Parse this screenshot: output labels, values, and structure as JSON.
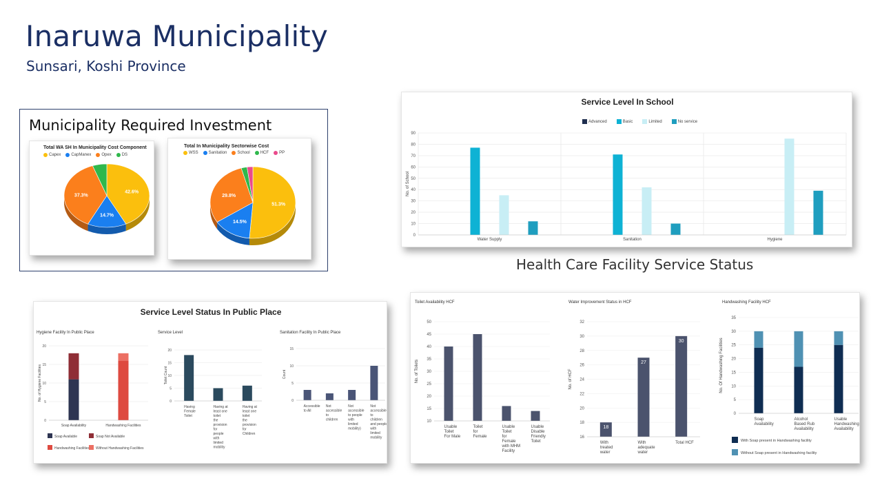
{
  "page": {
    "title": "Inaruwa Municipality",
    "subtitle": "Sunsari, Koshi Province",
    "investment_heading": "Municipality Required Investment",
    "hcf_heading": "Health Care Facility Service Status",
    "public_heading": "Service Level Status In Public Place"
  },
  "chart_data": [
    {
      "id": "wash-cost",
      "type": "pie",
      "title": "Total WA SH In Municipality Cost Component",
      "labels": [
        "Capex",
        "CapManex",
        "Opex",
        "DS"
      ],
      "values": [
        42.6,
        14.7,
        37.3,
        5.4
      ],
      "value_labels": [
        "42.6%",
        "14.7%",
        "37.3%",
        ""
      ],
      "colors": [
        "#fbbf0d",
        "#1a7ff0",
        "#fb7f1c",
        "#2fb84c"
      ]
    },
    {
      "id": "sector-cost",
      "type": "pie",
      "title": "Total In Municipality Sectorwise Cost",
      "labels": [
        "WSS",
        "Sanitation",
        "School",
        "HCF",
        "PP"
      ],
      "values": [
        51.3,
        14.5,
        29.8,
        2.2,
        2.2
      ],
      "value_labels": [
        "51.3%",
        "14.5%",
        "29.8%",
        "",
        ""
      ],
      "colors": [
        "#fbbf0d",
        "#1a7ff0",
        "#fb7f1c",
        "#2fb84c",
        "#ea4a8c"
      ]
    },
    {
      "id": "school",
      "type": "bar",
      "title": "Service Level In School",
      "categories": [
        "Water Supply",
        "Sanitation",
        "Hygiene"
      ],
      "ylabel": "No. of School",
      "ylim": [
        0,
        90
      ],
      "yticks": [
        0,
        10,
        20,
        30,
        40,
        50,
        60,
        70,
        80,
        90
      ],
      "series": [
        {
          "name": "Advanced",
          "color": "#1f2e4f",
          "values": [
            0,
            0,
            0
          ]
        },
        {
          "name": "Basic",
          "color": "#0eb2d4",
          "values": [
            77,
            71,
            0
          ]
        },
        {
          "name": "Limited",
          "color": "#c8eef5",
          "values": [
            35,
            42,
            85
          ]
        },
        {
          "name": "No service",
          "color": "#1f9ebf",
          "values": [
            12,
            10,
            39
          ]
        }
      ]
    },
    {
      "id": "hygiene-public",
      "type": "bar",
      "title": "Hygiene Facility In Public Place",
      "categories": [
        "Soap Availability",
        "Handwashing Facilities"
      ],
      "ylabel": "No. of Hygiene Facilities",
      "ylim": [
        0,
        20
      ],
      "yticks": [
        0,
        5,
        10,
        15,
        20
      ],
      "series": [
        {
          "name": "Soap Available",
          "color": "#2e3552",
          "values": [
            11,
            0
          ]
        },
        {
          "name": "Soap Not Available",
          "color": "#8f2e36",
          "values": [
            7,
            0
          ]
        },
        {
          "name": "Handwashing Facilities",
          "color": "#de4a40",
          "values": [
            0,
            16
          ]
        },
        {
          "name": "Without Handwashing Facilities",
          "color": "#ec6f63",
          "values": [
            0,
            2
          ]
        }
      ]
    },
    {
      "id": "service-level-public",
      "type": "bar",
      "title": "Service Level",
      "categories": [
        "Having Female Toilet",
        "Having at least one toilet the provision for people with limited mobility",
        "Having at least one toilet the provision for Children"
      ],
      "ylabel": "Toilet Count",
      "ylim": [
        0,
        20
      ],
      "yticks": [
        0,
        5,
        10,
        15,
        20
      ],
      "series": [
        {
          "name": "",
          "color": "#2b4a5e",
          "values": [
            18,
            5,
            6
          ]
        }
      ]
    },
    {
      "id": "sanitation-public",
      "type": "bar",
      "title": "Sanitation Facility In Public Place",
      "categories": [
        "Accessible to All",
        "Not accessible to children",
        "Not accessible to people with limited mobility)",
        "Not accessible to children and people with limited mobility"
      ],
      "ylabel": "Count",
      "ylim": [
        0,
        15
      ],
      "yticks": [
        0,
        5,
        10,
        15
      ],
      "series": [
        {
          "name": "",
          "color": "#4a5577",
          "values": [
            3,
            2,
            3,
            10
          ]
        }
      ]
    },
    {
      "id": "toilet-hcf",
      "type": "bar",
      "title": "Toilet Availability HCF",
      "categories": [
        "Usable Toilet For Male",
        "Toilet for Female",
        "Usable Toilet for Female with MHM Facility",
        "Usable Disable Friendly Toilet"
      ],
      "ylabel": "No. of Toilets",
      "ylim": [
        10,
        50
      ],
      "yticks": [
        10,
        15,
        20,
        25,
        30,
        35,
        40,
        45,
        50
      ],
      "series": [
        {
          "name": "",
          "color": "#4b536d",
          "values": [
            40,
            45,
            16,
            14
          ]
        }
      ]
    },
    {
      "id": "water-hcf",
      "type": "bar",
      "title": "Water Improvement Status in HCF",
      "categories": [
        "With treated water",
        "With adequate water",
        "Total HCF"
      ],
      "ylabel": "No. of HCF",
      "ylim": [
        16,
        32
      ],
      "yticks": [
        16,
        18,
        20,
        22,
        24,
        26,
        28,
        30,
        32
      ],
      "value_labels": [
        "18",
        "27",
        "30"
      ],
      "series": [
        {
          "name": "",
          "color": "#4b536d",
          "values": [
            18,
            27,
            30
          ]
        }
      ]
    },
    {
      "id": "handwashing-hcf",
      "type": "bar",
      "title": "Handwashing Facility HCF",
      "categories": [
        "Soap Availability",
        "Alcohol Based Rub Availability",
        "Usable Handwashing Availability"
      ],
      "ylabel": "No. Of Handwashing Facilities",
      "ylim": [
        0,
        35
      ],
      "yticks": [
        0,
        5,
        10,
        15,
        20,
        25,
        30,
        35
      ],
      "series": [
        {
          "name": "With Soap present in Handwashing facility",
          "color": "#0f2d52",
          "values": [
            24,
            17,
            25
          ]
        },
        {
          "name": "Without Soap present in Handwashing facility",
          "color": "#4f91b3",
          "values": [
            6,
            13,
            5
          ]
        }
      ]
    }
  ]
}
